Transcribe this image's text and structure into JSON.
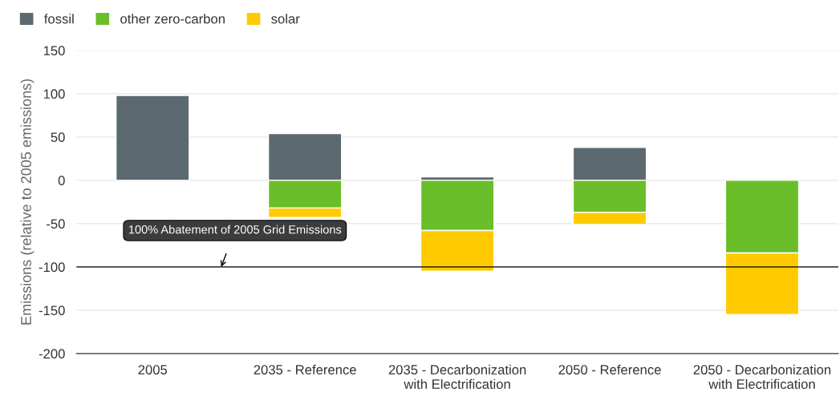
{
  "chart_data": {
    "type": "bar",
    "stacked": true,
    "ylabel": "Emissions (relative to 2005 emissions)",
    "categories": [
      "2005",
      "2035 - Reference",
      "2035 - Decarbonization\nwith Electrification",
      "2050 - Reference",
      "2050 - Decarbonization\nwith Electrification"
    ],
    "series": [
      {
        "name": "fossil",
        "color": "#5c6970",
        "values": [
          98,
          54,
          4,
          38,
          0
        ]
      },
      {
        "name": "other zero-carbon",
        "color": "#6abe29",
        "values": [
          0,
          -32,
          -58,
          -37,
          -84
        ]
      },
      {
        "name": "solar",
        "color": "#ffcb00",
        "values": [
          0,
          -11,
          -47,
          -14,
          -71
        ]
      }
    ],
    "ylim": [
      -200,
      150
    ],
    "yticks": [
      -200,
      -150,
      -100,
      -50,
      0,
      50,
      100,
      150
    ],
    "grid": "y",
    "legend": "top left",
    "ref_lines": [
      {
        "axis": "y",
        "value": -100,
        "label": "100% Abatement of 2005 Grid Emissions",
        "color": "#000000"
      }
    ]
  }
}
